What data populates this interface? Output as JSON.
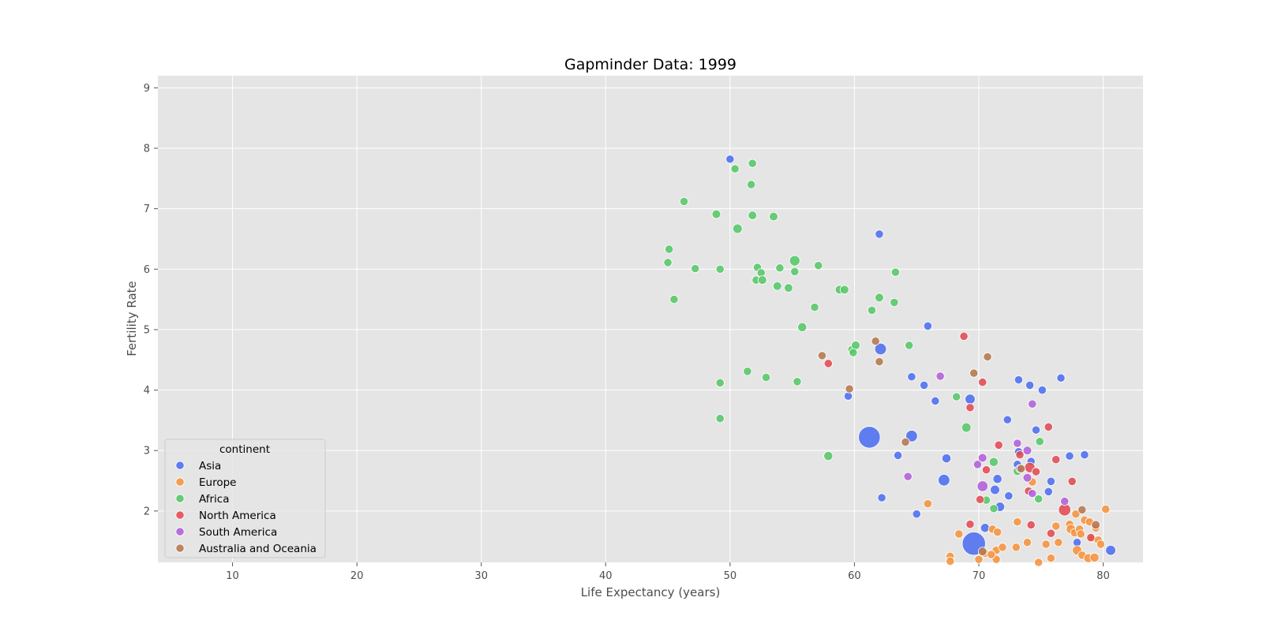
{
  "chart_data": {
    "type": "scatter",
    "title": "Gapminder Data: 1999",
    "xlabel": "Life Expectancy (years)",
    "ylabel": "Fertility Rate",
    "xlim": [
      4,
      83.2
    ],
    "ylim": [
      1.15,
      9.2
    ],
    "xticks": [
      10,
      20,
      30,
      40,
      50,
      60,
      70,
      80
    ],
    "yticks": [
      2,
      3,
      4,
      5,
      6,
      7,
      8,
      9
    ],
    "grid": true,
    "legend": {
      "title": "continent",
      "placement": "bottom-left"
    },
    "series": [
      {
        "name": "Asia",
        "color": "#4c6ef0",
        "points": [
          [
            50.0,
            7.82,
            1
          ],
          [
            62.0,
            6.58,
            1
          ],
          [
            65.9,
            5.06,
            1
          ],
          [
            62.1,
            4.68,
            2
          ],
          [
            64.6,
            4.22,
            1
          ],
          [
            65.6,
            4.08,
            1
          ],
          [
            66.5,
            3.82,
            1
          ],
          [
            69.3,
            3.85,
            1.5
          ],
          [
            59.5,
            3.9,
            1
          ],
          [
            73.2,
            4.17,
            1
          ],
          [
            74.1,
            4.08,
            1
          ],
          [
            75.1,
            4.0,
            1
          ],
          [
            76.6,
            4.2,
            1
          ],
          [
            72.3,
            3.51,
            1
          ],
          [
            74.6,
            3.34,
            1
          ],
          [
            61.2,
            3.22,
            7
          ],
          [
            64.6,
            3.24,
            2
          ],
          [
            63.5,
            2.92,
            1
          ],
          [
            67.4,
            2.87,
            1.2
          ],
          [
            73.2,
            2.98,
            1
          ],
          [
            73.1,
            2.77,
            1
          ],
          [
            74.2,
            2.82,
            1
          ],
          [
            77.3,
            2.91,
            1
          ],
          [
            78.5,
            2.93,
            1
          ],
          [
            67.2,
            2.51,
            2
          ],
          [
            71.5,
            2.53,
            1.2
          ],
          [
            75.8,
            2.49,
            1
          ],
          [
            71.3,
            2.35,
            1.3
          ],
          [
            72.4,
            2.25,
            1
          ],
          [
            75.6,
            2.32,
            1
          ],
          [
            62.2,
            2.22,
            1
          ],
          [
            71.7,
            2.07,
            1.3
          ],
          [
            65.0,
            1.95,
            1
          ],
          [
            70.5,
            1.72,
            1.2
          ],
          [
            69.6,
            1.46,
            8
          ],
          [
            77.9,
            1.48,
            1
          ],
          [
            80.6,
            1.35,
            1.5
          ]
        ]
      },
      {
        "name": "Europe",
        "color": "#f5933f",
        "points": [
          [
            65.9,
            2.12,
            1
          ],
          [
            68.4,
            1.62,
            1
          ],
          [
            67.7,
            1.25,
            1
          ],
          [
            67.7,
            1.17,
            1
          ],
          [
            70.0,
            1.2,
            1
          ],
          [
            71.1,
            1.7,
            1
          ],
          [
            71.5,
            1.65,
            1
          ],
          [
            71.4,
            1.35,
            1
          ],
          [
            71.9,
            1.4,
            1
          ],
          [
            71.4,
            1.2,
            1
          ],
          [
            73.0,
            1.4,
            1
          ],
          [
            73.1,
            1.82,
            1
          ],
          [
            73.9,
            1.48,
            1
          ],
          [
            74.3,
            2.48,
            1
          ],
          [
            74.8,
            1.15,
            1
          ],
          [
            75.4,
            1.45,
            1
          ],
          [
            75.8,
            1.22,
            1
          ],
          [
            76.2,
            1.75,
            1
          ],
          [
            76.4,
            1.48,
            1
          ],
          [
            77.3,
            1.78,
            1
          ],
          [
            77.4,
            1.7,
            1.3
          ],
          [
            77.7,
            1.64,
            1
          ],
          [
            77.8,
            1.95,
            1
          ],
          [
            77.9,
            1.35,
            1.3
          ],
          [
            78.1,
            1.7,
            1
          ],
          [
            78.2,
            1.62,
            1
          ],
          [
            78.3,
            1.27,
            1
          ],
          [
            78.5,
            1.85,
            1
          ],
          [
            78.8,
            1.22,
            1.2
          ],
          [
            78.9,
            1.82,
            1
          ],
          [
            79.1,
            1.55,
            1
          ],
          [
            79.3,
            1.23,
            1.2
          ],
          [
            79.4,
            1.72,
            1
          ],
          [
            79.6,
            1.52,
            1
          ],
          [
            79.8,
            1.45,
            1
          ],
          [
            80.2,
            2.03,
            1
          ],
          [
            70.5,
            1.3,
            1
          ],
          [
            71.0,
            1.28,
            1
          ]
        ]
      },
      {
        "name": "Africa",
        "color": "#56c768",
        "points": [
          [
            50.4,
            7.66,
            1
          ],
          [
            51.8,
            7.75,
            1
          ],
          [
            51.7,
            7.4,
            1
          ],
          [
            46.3,
            7.12,
            1
          ],
          [
            48.9,
            6.91,
            1.1
          ],
          [
            51.8,
            6.89,
            1.1
          ],
          [
            53.5,
            6.87,
            1.1
          ],
          [
            50.6,
            6.67,
            1.3
          ],
          [
            45.1,
            6.33,
            1
          ],
          [
            45.0,
            6.11,
            1
          ],
          [
            47.2,
            6.01,
            1
          ],
          [
            49.2,
            6.0,
            1
          ],
          [
            52.2,
            6.03,
            1
          ],
          [
            52.5,
            5.94,
            1
          ],
          [
            54.0,
            6.02,
            1
          ],
          [
            55.2,
            6.14,
            1.6
          ],
          [
            55.2,
            5.96,
            1
          ],
          [
            57.1,
            6.06,
            1
          ],
          [
            52.1,
            5.82,
            1
          ],
          [
            52.6,
            5.82,
            1.1
          ],
          [
            53.8,
            5.72,
            1.1
          ],
          [
            54.7,
            5.69,
            1.1
          ],
          [
            58.8,
            5.66,
            1.1
          ],
          [
            59.2,
            5.66,
            1.1
          ],
          [
            63.3,
            5.95,
            1
          ],
          [
            62.0,
            5.53,
            1.1
          ],
          [
            61.4,
            5.32,
            1
          ],
          [
            63.2,
            5.45,
            1
          ],
          [
            45.5,
            5.5,
            1
          ],
          [
            56.8,
            5.37,
            1
          ],
          [
            55.8,
            5.04,
            1.2
          ],
          [
            59.8,
            4.67,
            1
          ],
          [
            60.1,
            4.74,
            1.1
          ],
          [
            59.9,
            4.62,
            1
          ],
          [
            64.4,
            4.74,
            1
          ],
          [
            51.4,
            4.31,
            1
          ],
          [
            52.9,
            4.21,
            1
          ],
          [
            49.2,
            4.12,
            1
          ],
          [
            55.4,
            4.14,
            1
          ],
          [
            68.2,
            3.89,
            1
          ],
          [
            49.2,
            3.53,
            1
          ],
          [
            69.0,
            3.38,
            1.3
          ],
          [
            74.9,
            3.15,
            1
          ],
          [
            57.9,
            2.91,
            1.2
          ],
          [
            71.2,
            2.81,
            1.2
          ],
          [
            73.1,
            2.66,
            1.1
          ],
          [
            70.6,
            2.18,
            1
          ],
          [
            71.2,
            2.04,
            1
          ],
          [
            74.8,
            2.2,
            1
          ]
        ]
      },
      {
        "name": "North America",
        "color": "#e24a52",
        "points": [
          [
            68.8,
            4.89,
            1
          ],
          [
            70.3,
            4.13,
            1
          ],
          [
            57.9,
            4.44,
            1
          ],
          [
            69.3,
            3.71,
            1
          ],
          [
            75.6,
            3.39,
            1
          ],
          [
            71.6,
            3.09,
            1
          ],
          [
            73.3,
            2.93,
            1
          ],
          [
            76.2,
            2.85,
            1
          ],
          [
            74.1,
            2.72,
            1.6
          ],
          [
            70.6,
            2.68,
            1
          ],
          [
            74.6,
            2.65,
            1
          ],
          [
            77.5,
            2.49,
            1
          ],
          [
            74.0,
            2.33,
            1
          ],
          [
            70.1,
            2.19,
            1
          ],
          [
            76.9,
            2.02,
            2.2
          ],
          [
            69.3,
            1.78,
            1
          ],
          [
            74.2,
            1.77,
            1
          ],
          [
            75.8,
            1.63,
            1
          ],
          [
            79.0,
            1.56,
            1
          ]
        ]
      },
      {
        "name": "South America",
        "color": "#b060da",
        "points": [
          [
            66.9,
            4.23,
            1
          ],
          [
            74.3,
            3.77,
            1
          ],
          [
            73.9,
            3.0,
            1.1
          ],
          [
            73.1,
            3.12,
            1
          ],
          [
            70.3,
            2.88,
            1.1
          ],
          [
            69.9,
            2.77,
            1
          ],
          [
            73.3,
            2.7,
            1
          ],
          [
            73.9,
            2.55,
            1.1
          ],
          [
            64.3,
            2.57,
            1
          ],
          [
            70.3,
            2.41,
            1.7
          ],
          [
            74.3,
            2.29,
            1
          ],
          [
            76.9,
            2.16,
            1
          ]
        ]
      },
      {
        "name": "Australia and Oceania",
        "color": "#b5774e",
        "points": [
          [
            61.7,
            4.81,
            1
          ],
          [
            57.4,
            4.57,
            1
          ],
          [
            70.7,
            4.55,
            1
          ],
          [
            62.0,
            4.47,
            1
          ],
          [
            69.6,
            4.28,
            1
          ],
          [
            59.6,
            4.02,
            1
          ],
          [
            64.1,
            3.14,
            1
          ],
          [
            73.4,
            2.7,
            1
          ],
          [
            78.3,
            2.02,
            1
          ],
          [
            79.4,
            1.77,
            1.1
          ],
          [
            70.3,
            1.33,
            1.1
          ]
        ]
      }
    ]
  }
}
